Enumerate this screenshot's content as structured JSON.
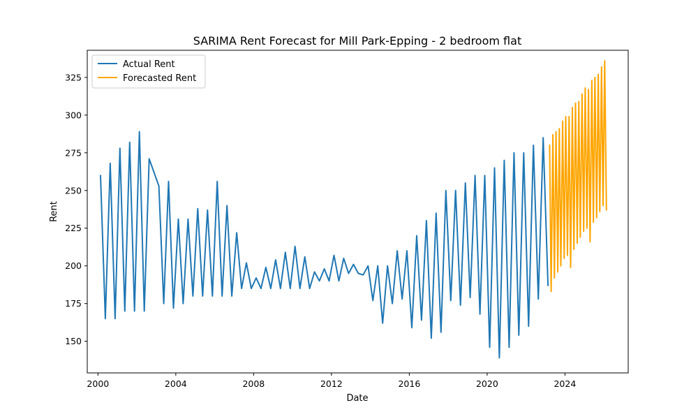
{
  "chart_data": {
    "type": "line",
    "title": "SARIMA Rent Forecast for Mill Park-Epping - 2 bedroom flat",
    "xlabel": "Date",
    "ylabel": "Rent",
    "xlim": [
      1999.45,
      2027.25
    ],
    "ylim": [
      129,
      343
    ],
    "xticks": [
      2000,
      2004,
      2008,
      2012,
      2016,
      2020,
      2024
    ],
    "xtick_labels": [
      "2000",
      "2004",
      "2008",
      "2012",
      "2016",
      "2020",
      "2024"
    ],
    "yticks": [
      150,
      175,
      200,
      225,
      250,
      275,
      300,
      325
    ],
    "ytick_labels": [
      "150",
      "175",
      "200",
      "225",
      "250",
      "275",
      "300",
      "325"
    ],
    "grid": false,
    "legend_position": "top-left",
    "series": [
      {
        "name": "Actual Rent",
        "color": "#1f77b4",
        "points": [
          [
            2000.13,
            260
          ],
          [
            2000.38,
            165
          ],
          [
            2000.63,
            268
          ],
          [
            2000.88,
            165
          ],
          [
            2001.13,
            278
          ],
          [
            2001.38,
            170
          ],
          [
            2001.63,
            282
          ],
          [
            2001.88,
            170
          ],
          [
            2002.13,
            289
          ],
          [
            2002.38,
            170
          ],
          [
            2002.63,
            271
          ],
          [
            2003.13,
            253
          ],
          [
            2003.38,
            175
          ],
          [
            2003.63,
            256
          ],
          [
            2003.88,
            172
          ],
          [
            2004.13,
            231
          ],
          [
            2004.38,
            175
          ],
          [
            2004.63,
            231
          ],
          [
            2004.88,
            180
          ],
          [
            2005.13,
            238
          ],
          [
            2005.38,
            180
          ],
          [
            2005.63,
            237
          ],
          [
            2005.88,
            180
          ],
          [
            2006.13,
            256
          ],
          [
            2006.38,
            180
          ],
          [
            2006.63,
            240
          ],
          [
            2006.88,
            180
          ],
          [
            2007.13,
            222
          ],
          [
            2007.38,
            185
          ],
          [
            2007.63,
            202
          ],
          [
            2007.88,
            185
          ],
          [
            2008.13,
            192
          ],
          [
            2008.38,
            185
          ],
          [
            2008.63,
            199
          ],
          [
            2008.88,
            185
          ],
          [
            2009.13,
            204
          ],
          [
            2009.38,
            185
          ],
          [
            2009.63,
            209
          ],
          [
            2009.88,
            185
          ],
          [
            2010.13,
            213
          ],
          [
            2010.38,
            185
          ],
          [
            2010.63,
            206
          ],
          [
            2010.88,
            185
          ],
          [
            2011.13,
            196
          ],
          [
            2011.38,
            190
          ],
          [
            2011.63,
            198
          ],
          [
            2011.88,
            190
          ],
          [
            2012.13,
            207
          ],
          [
            2012.38,
            190
          ],
          [
            2012.63,
            205
          ],
          [
            2012.88,
            195
          ],
          [
            2013.13,
            201
          ],
          [
            2013.38,
            195
          ],
          [
            2013.63,
            194
          ],
          [
            2013.88,
            200
          ],
          [
            2014.13,
            177
          ],
          [
            2014.38,
            200
          ],
          [
            2014.63,
            162
          ],
          [
            2014.88,
            200
          ],
          [
            2015.13,
            175
          ],
          [
            2015.38,
            210
          ],
          [
            2015.63,
            178
          ],
          [
            2015.88,
            210
          ],
          [
            2016.13,
            159
          ],
          [
            2016.38,
            220
          ],
          [
            2016.63,
            164
          ],
          [
            2016.88,
            230
          ],
          [
            2017.13,
            152
          ],
          [
            2017.38,
            235
          ],
          [
            2017.63,
            156
          ],
          [
            2017.88,
            250
          ],
          [
            2018.13,
            177
          ],
          [
            2018.38,
            250
          ],
          [
            2018.63,
            174
          ],
          [
            2018.88,
            255
          ],
          [
            2019.13,
            179
          ],
          [
            2019.38,
            260
          ],
          [
            2019.63,
            168
          ],
          [
            2019.88,
            260
          ],
          [
            2020.13,
            146
          ],
          [
            2020.38,
            265
          ],
          [
            2020.63,
            139
          ],
          [
            2020.88,
            270
          ],
          [
            2021.13,
            146
          ],
          [
            2021.38,
            275
          ],
          [
            2021.63,
            154
          ],
          [
            2021.88,
            275
          ],
          [
            2022.13,
            160
          ],
          [
            2022.38,
            280
          ],
          [
            2022.63,
            178
          ],
          [
            2022.88,
            285
          ],
          [
            2023.13,
            187
          ]
        ]
      },
      {
        "name": "Forecasted Rent",
        "color": "#ffa500",
        "points": [
          [
            2023.21,
            280
          ],
          [
            2023.29,
            183
          ],
          [
            2023.38,
            287
          ],
          [
            2023.46,
            192
          ],
          [
            2023.54,
            289
          ],
          [
            2023.63,
            196
          ],
          [
            2023.71,
            291
          ],
          [
            2023.79,
            200
          ],
          [
            2023.88,
            296
          ],
          [
            2023.96,
            205
          ],
          [
            2024.04,
            299
          ],
          [
            2024.13,
            207
          ],
          [
            2024.21,
            299
          ],
          [
            2024.29,
            199
          ],
          [
            2024.38,
            305
          ],
          [
            2024.46,
            211
          ],
          [
            2024.54,
            308
          ],
          [
            2024.63,
            215
          ],
          [
            2024.71,
            309
          ],
          [
            2024.79,
            219
          ],
          [
            2024.88,
            314
          ],
          [
            2024.96,
            223
          ],
          [
            2025.04,
            318
          ],
          [
            2025.13,
            225
          ],
          [
            2025.21,
            317
          ],
          [
            2025.29,
            216
          ],
          [
            2025.38,
            323
          ],
          [
            2025.46,
            229
          ],
          [
            2025.54,
            325
          ],
          [
            2025.63,
            232
          ],
          [
            2025.71,
            327
          ],
          [
            2025.79,
            236
          ],
          [
            2025.88,
            332
          ],
          [
            2025.96,
            240
          ],
          [
            2026.04,
            336
          ],
          [
            2026.13,
            237
          ]
        ]
      }
    ]
  }
}
